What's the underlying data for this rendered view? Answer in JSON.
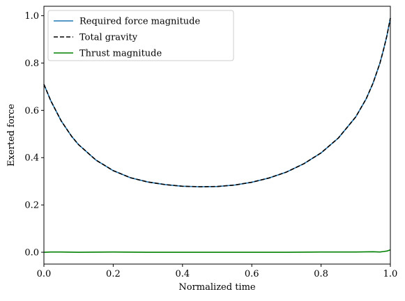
{
  "chart_data": {
    "type": "line",
    "title": "",
    "xlabel": "Normalized time",
    "ylabel": "Exerted force",
    "xlim": [
      0.0,
      1.0
    ],
    "ylim": [
      -0.05,
      1.04
    ],
    "xticks": [
      0.0,
      0.2,
      0.4,
      0.6,
      0.8,
      1.0
    ],
    "xtick_labels": [
      "0.0",
      "0.2",
      "0.4",
      "0.6",
      "0.8",
      "1.0"
    ],
    "yticks": [
      0.0,
      0.2,
      0.4,
      0.6,
      0.8,
      1.0
    ],
    "ytick_labels": [
      "0.0",
      "0.2",
      "0.4",
      "0.6",
      "0.8",
      "1.0"
    ],
    "grid": false,
    "legend_position": "top-left",
    "series": [
      {
        "name": "Required force magnitude",
        "color": "#1f77b4",
        "style": "solid",
        "x": [
          0.0,
          0.02,
          0.05,
          0.08,
          0.1,
          0.15,
          0.2,
          0.25,
          0.3,
          0.35,
          0.4,
          0.45,
          0.5,
          0.55,
          0.6,
          0.65,
          0.7,
          0.75,
          0.8,
          0.85,
          0.9,
          0.93,
          0.95,
          0.97,
          0.98,
          0.99,
          1.0
        ],
        "y": [
          0.71,
          0.64,
          0.555,
          0.49,
          0.455,
          0.39,
          0.345,
          0.315,
          0.297,
          0.286,
          0.279,
          0.277,
          0.278,
          0.284,
          0.296,
          0.314,
          0.339,
          0.374,
          0.42,
          0.483,
          0.572,
          0.648,
          0.715,
          0.8,
          0.855,
          0.915,
          0.99
        ]
      },
      {
        "name": "Total gravity",
        "color": "#000000",
        "style": "dashed",
        "x": [
          0.0,
          0.02,
          0.05,
          0.08,
          0.1,
          0.15,
          0.2,
          0.25,
          0.3,
          0.35,
          0.4,
          0.45,
          0.5,
          0.55,
          0.6,
          0.65,
          0.7,
          0.75,
          0.8,
          0.85,
          0.9,
          0.93,
          0.95,
          0.97,
          0.98,
          0.99,
          1.0
        ],
        "y": [
          0.71,
          0.64,
          0.555,
          0.49,
          0.455,
          0.39,
          0.345,
          0.315,
          0.297,
          0.286,
          0.279,
          0.277,
          0.278,
          0.284,
          0.296,
          0.314,
          0.339,
          0.374,
          0.42,
          0.483,
          0.572,
          0.648,
          0.715,
          0.8,
          0.855,
          0.915,
          0.99
        ]
      },
      {
        "name": "Thrust magnitude",
        "color": "#008000",
        "style": "solid",
        "x": [
          0.0,
          0.02,
          0.05,
          0.1,
          0.2,
          0.3,
          0.4,
          0.5,
          0.6,
          0.7,
          0.8,
          0.9,
          0.95,
          0.97,
          0.98,
          0.99,
          1.0
        ],
        "y": [
          0.0,
          0.001,
          0.001,
          0.0,
          0.001,
          0.0,
          0.0,
          0.0,
          0.0,
          0.0,
          0.001,
          0.001,
          0.002,
          0.001,
          0.003,
          0.005,
          0.01
        ]
      }
    ]
  }
}
